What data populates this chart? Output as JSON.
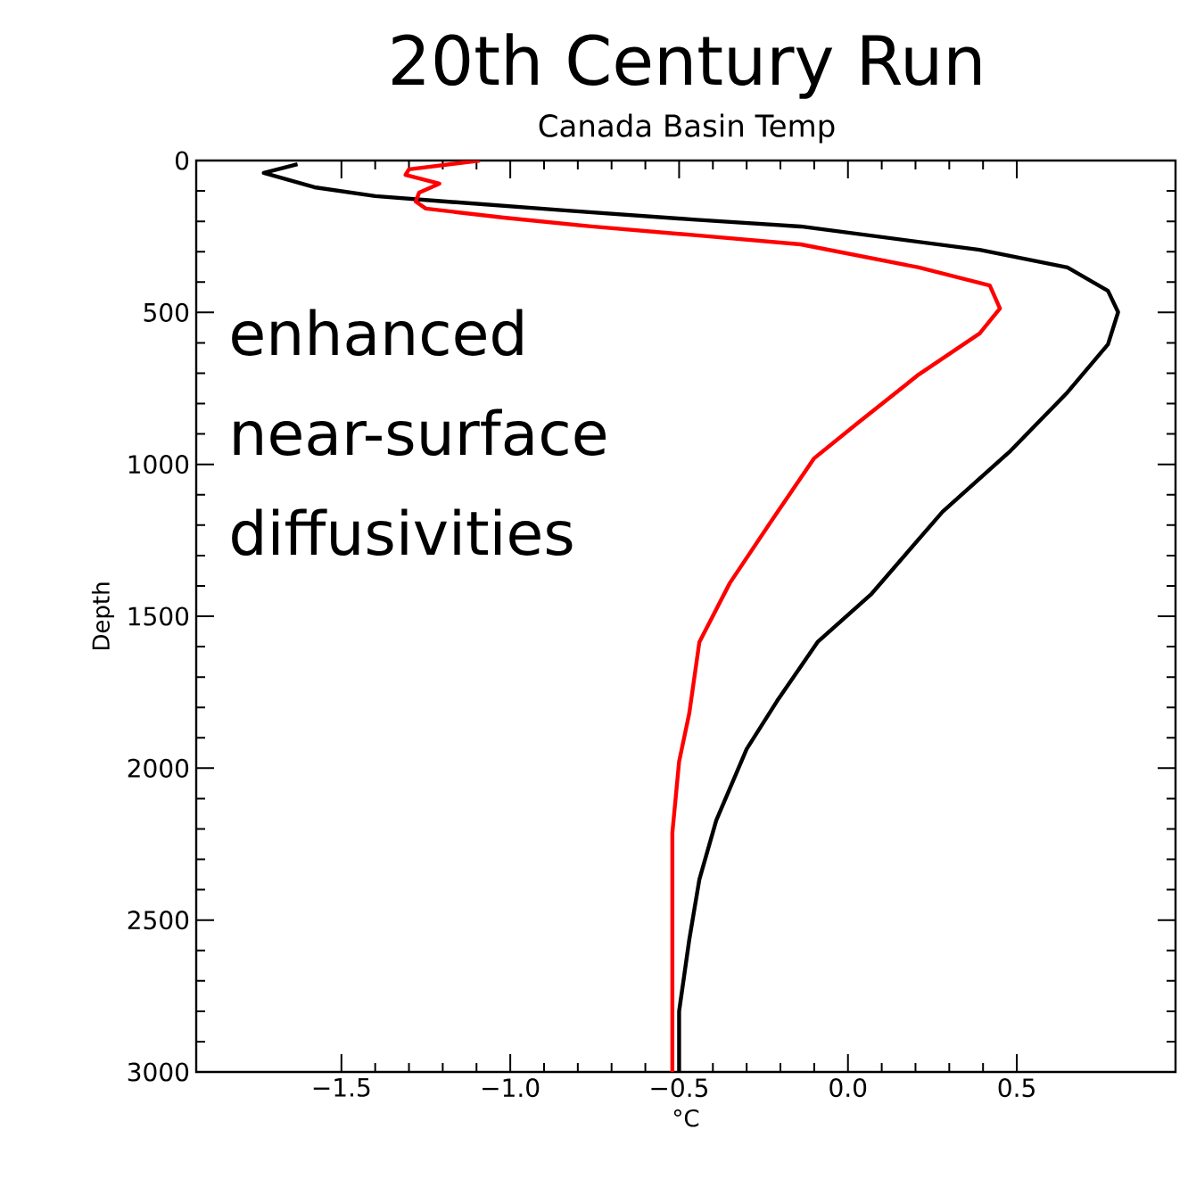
{
  "chart_data": {
    "type": "line",
    "title": "20th Century Run",
    "subtitle": "Canada Basin Temp",
    "xlabel": "°C",
    "ylabel": "Depth",
    "annotations": [
      "enhanced near-surface diffusivities"
    ],
    "xlim": [
      -1.93,
      0.97
    ],
    "ylim": [
      3000,
      0
    ],
    "xticks": [
      {
        "value": -1.5,
        "label": "−1.5"
      },
      {
        "value": -1.0,
        "label": "−1.0"
      },
      {
        "value": -0.5,
        "label": "−0.5"
      },
      {
        "value": 0.0,
        "label": "0.0"
      },
      {
        "value": 0.5,
        "label": "0.5"
      }
    ],
    "yticks": [
      0,
      500,
      1000,
      1500,
      2000,
      2500,
      3000
    ],
    "series": [
      {
        "color": "#000000",
        "x": [
          -1.63,
          -1.73,
          -1.58,
          -1.4,
          -1.19,
          -0.84,
          -0.46,
          -0.14,
          0.39,
          0.65,
          0.77,
          0.8,
          0.77,
          0.65,
          0.48,
          0.28,
          0.07,
          -0.09,
          -0.21,
          -0.3,
          -0.39,
          -0.44,
          -0.47,
          -0.5,
          -0.5,
          -0.5
        ],
        "values": [
          12,
          41,
          88,
          117,
          135,
          164,
          194,
          217,
          294,
          352,
          429,
          499,
          605,
          763,
          957,
          1156,
          1426,
          1585,
          1779,
          1937,
          2172,
          2366,
          2565,
          2800,
          2953,
          3000
        ]
      },
      {
        "color": "#ff0000",
        "x": [
          -1.09,
          -1.3,
          -1.31,
          -1.21,
          -1.27,
          -1.28,
          -1.25,
          -1.02,
          -0.76,
          -0.44,
          -0.14,
          0.21,
          0.42,
          0.45,
          0.39,
          0.21,
          0.03,
          -0.1,
          -0.23,
          -0.35,
          -0.44,
          -0.47,
          -0.5,
          -0.52,
          -0.52
        ],
        "values": [
          0,
          29,
          47,
          76,
          106,
          135,
          158,
          188,
          217,
          247,
          276,
          352,
          411,
          487,
          569,
          704,
          863,
          980,
          1192,
          1391,
          1585,
          1820,
          1978,
          2213,
          3000
        ]
      }
    ]
  }
}
